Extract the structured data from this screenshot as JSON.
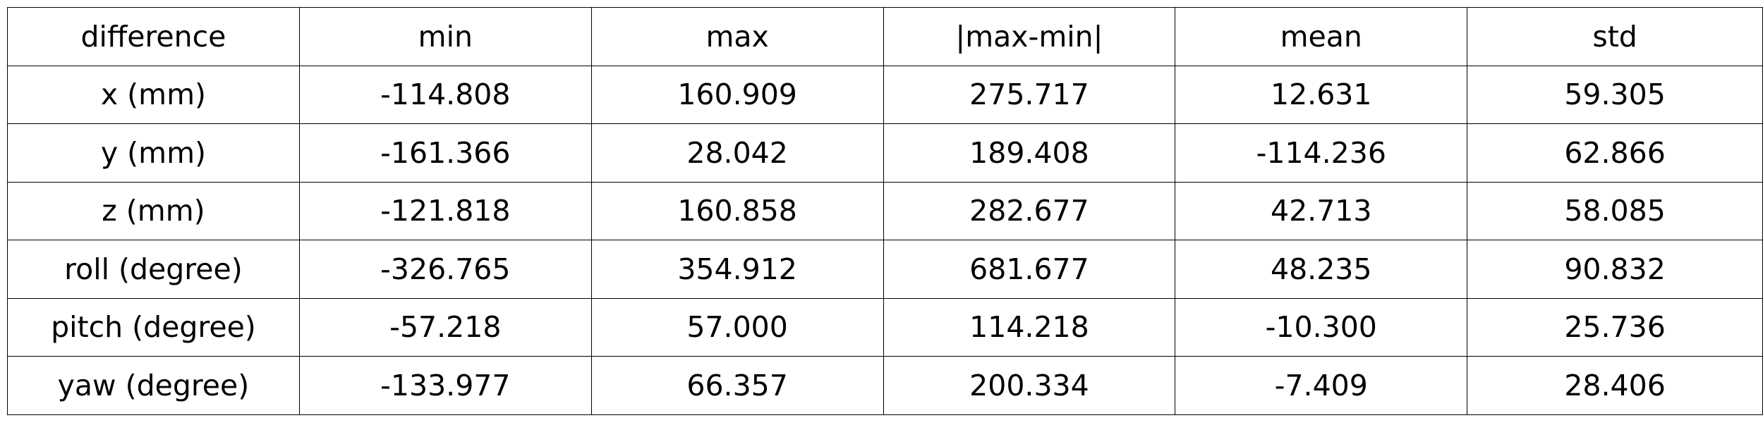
{
  "table": {
    "headers": [
      "difference",
      "min",
      "max",
      "|max-min|",
      "mean",
      "std"
    ],
    "rows": [
      [
        "x (mm)",
        "-114.808",
        "160.909",
        "275.717",
        "12.631",
        "59.305"
      ],
      [
        "y (mm)",
        "-161.366",
        "28.042",
        "189.408",
        "-114.236",
        "62.866"
      ],
      [
        "z (mm)",
        "-121.818",
        "160.858",
        "282.677",
        "42.713",
        "58.085"
      ],
      [
        "roll (degree)",
        "-326.765",
        "354.912",
        "681.677",
        "48.235",
        "90.832"
      ],
      [
        "pitch (degree)",
        "-57.218",
        "57.000",
        "114.218",
        "-10.300",
        "25.736"
      ],
      [
        "yaw (degree)",
        "-133.977",
        "66.357",
        "200.334",
        "-7.409",
        "28.406"
      ]
    ]
  }
}
